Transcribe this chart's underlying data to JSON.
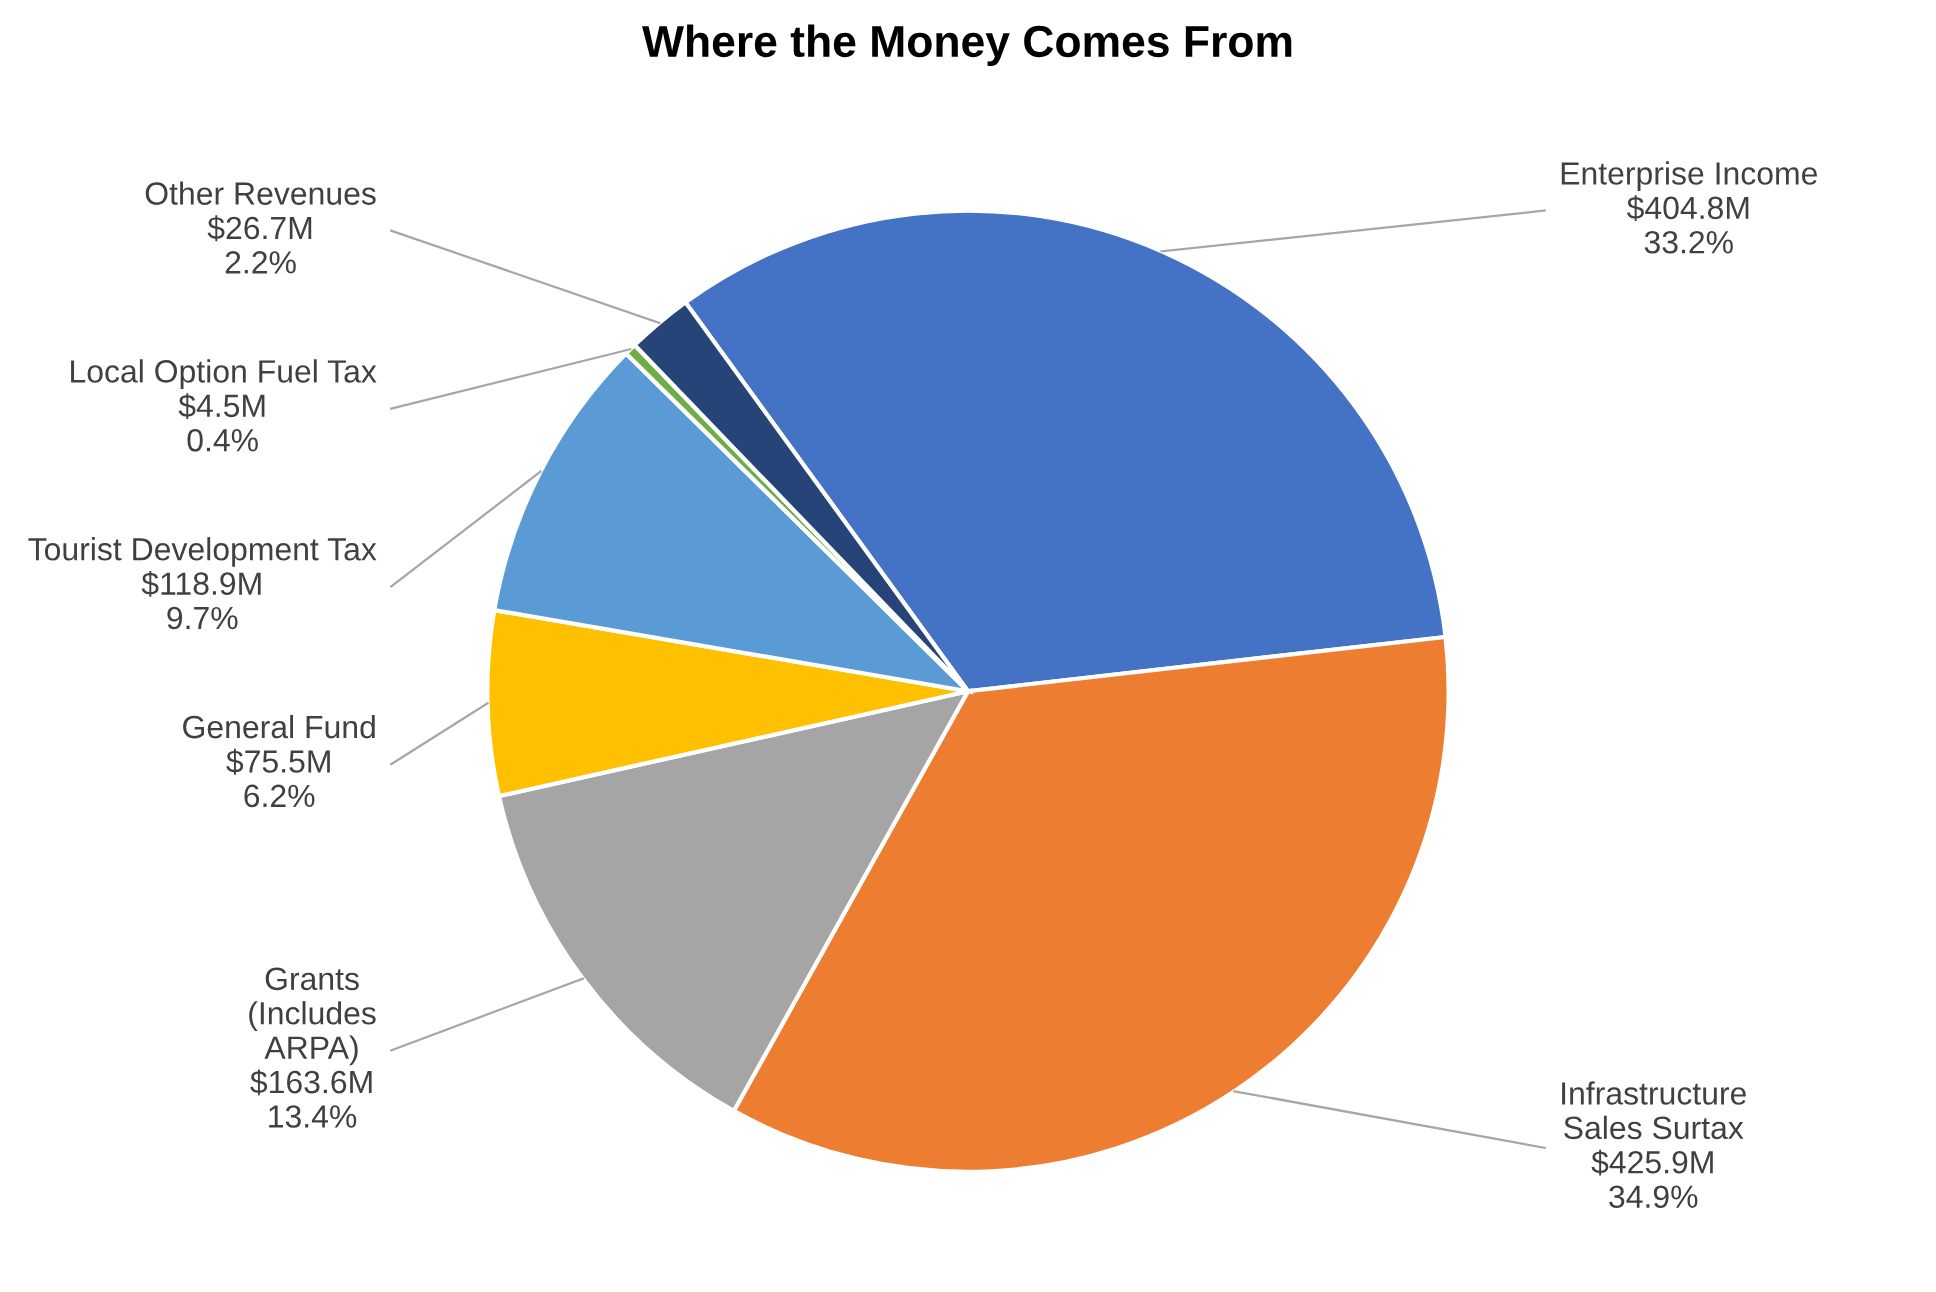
{
  "chart_data": {
    "type": "pie",
    "title": "Where the Money Comes From",
    "categories": [
      "Enterprise Income",
      "Infrastructure\nSales Surtax",
      "Grants\n(Includes\nARPA)",
      "General Fund",
      "Tourist Development Tax",
      "Local Option Fuel Tax",
      "Other Revenues"
    ],
    "values": [
      33.2,
      34.9,
      13.4,
      6.2,
      9.7,
      0.4,
      2.2
    ],
    "value_labels": [
      "$404.8M\n33.2%",
      "$425.9M\n34.9%",
      "$163.6M\n13.4%",
      "$75.5M\n6.2%",
      "$118.9M\n9.7%",
      "$4.5M\n0.4%",
      "$26.7M\n2.2%"
    ],
    "colors": [
      "#4472c4",
      "#ed7d31",
      "#a5a5a5",
      "#ffc000",
      "#5b9bd5",
      "#70ad47",
      "#264478"
    ]
  }
}
